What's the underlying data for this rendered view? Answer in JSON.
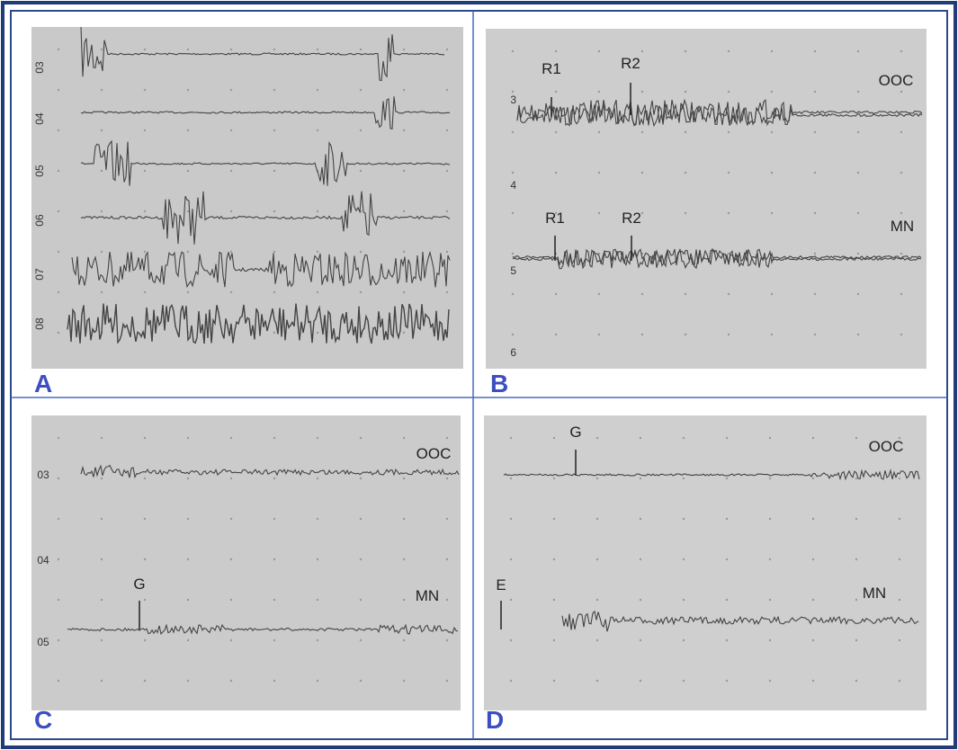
{
  "panels": [
    {
      "letter": "A",
      "channels": [
        "03",
        "04",
        "05",
        "06",
        "07",
        "08"
      ]
    },
    {
      "letter": "B",
      "scale": [
        "3",
        "4",
        "5",
        "6"
      ],
      "annotations": [
        "R1",
        "R2",
        "OOC",
        "R1",
        "R2",
        "MN"
      ]
    },
    {
      "letter": "C",
      "scale": [
        "03",
        "04",
        "05"
      ],
      "annotations": [
        "OOC",
        "G",
        "MN"
      ]
    },
    {
      "letter": "D",
      "annotations": [
        "G",
        "OOC",
        "E",
        "MN"
      ]
    }
  ]
}
